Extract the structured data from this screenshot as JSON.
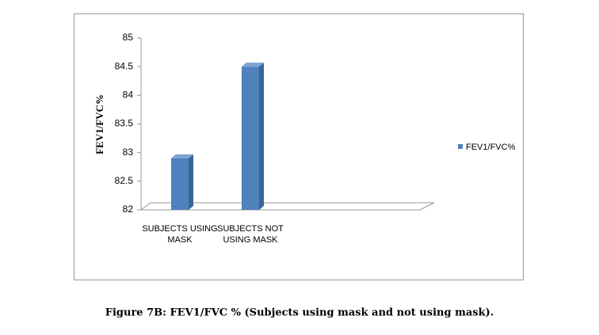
{
  "chart_data": {
    "type": "bar3d",
    "caption": "Figure 7B: FEV1/FVC % (Subjects using mask and not using mask).",
    "y_label": "FEV1/FVC%",
    "categories": [
      "SUBJECTS USING MASK",
      "SUBJECTS NOT USING MASK"
    ],
    "series": [
      {
        "name": "FEV1/FVC%",
        "color": "#4f81bd",
        "values": [
          82.9,
          84.5
        ]
      }
    ],
    "ylim": [
      82,
      85
    ],
    "yticks": [
      82,
      82.5,
      83,
      83.5,
      84,
      84.5,
      85
    ],
    "legend": "right"
  }
}
